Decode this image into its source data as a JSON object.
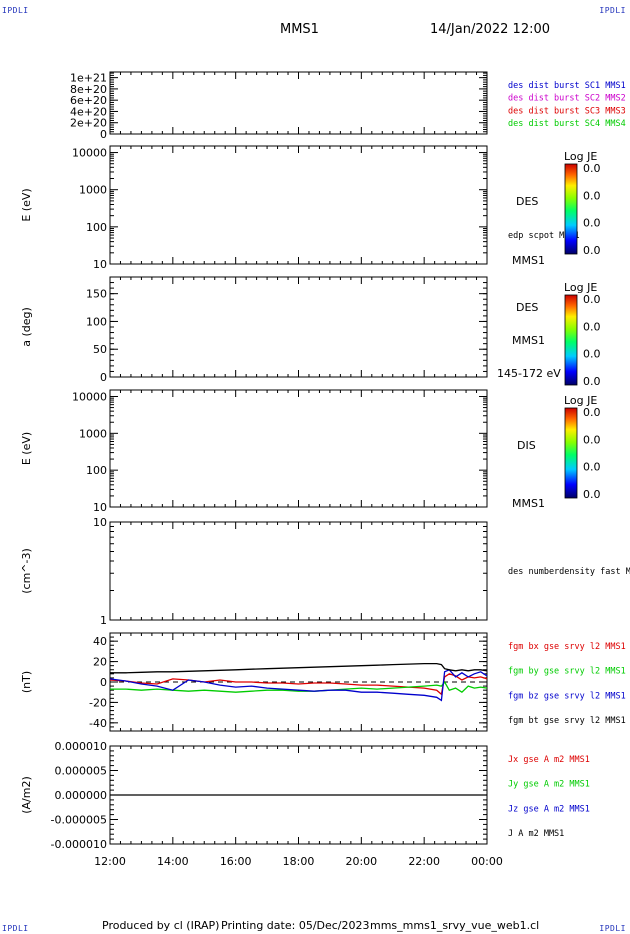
{
  "corner_tags": {
    "top_left": "IPDLI",
    "top_right": "IPDLI",
    "bottom_left": "IPDLI",
    "bottom_right": "IPDLI"
  },
  "header": {
    "spacecraft": "MMS1",
    "datetime": "14/Jan/2022 12:00"
  },
  "footer": {
    "produced": "Produced by cl (IRAP)",
    "printing": "Printing date: 05/Dec/2023",
    "file": "mms_mms1_srvy_vue_web1.cl"
  },
  "colors": {
    "frame": "#000000",
    "red": "#dd0000",
    "green": "#00cc00",
    "blue": "#0000cc",
    "magenta": "#cc00cc",
    "black": "#000000"
  },
  "chart_data": [
    {
      "type": "line",
      "panel": "dist-burst",
      "ylabel": "",
      "ylim": [
        0,
        1.1e+21
      ],
      "yticks": [
        "1e+21",
        "8e+20",
        "6e+20",
        "4e+20",
        "2e+20",
        "0"
      ],
      "ytick_values": [
        1e+21,
        8e+20,
        6e+20,
        4e+20,
        2e+20,
        0
      ],
      "legend": [
        "des dist burst SC1 MMS1",
        "des dist burst SC2 MMS2",
        "des dist burst SC3 MMS3",
        "des dist burst SC4 MMS4"
      ],
      "legend_colors": [
        "#0000cc",
        "#cc00cc",
        "#dd0000",
        "#00cc00"
      ],
      "reference_line": 0
    },
    {
      "type": "heatmap",
      "panel": "des-energy",
      "ylabel": "E (eV)",
      "yscale": "log",
      "ylim": [
        10,
        15000
      ],
      "yticks": [
        "10000",
        "1000",
        "100",
        "10"
      ],
      "ytick_values": [
        10000,
        1000,
        100,
        10
      ],
      "side_labels": [
        "DES",
        "edp scpot MMS1",
        "MMS1"
      ],
      "colorbar": {
        "title": "Log JE",
        "ticks": [
          "0.0",
          "0.0",
          "0.0",
          "0.0"
        ]
      }
    },
    {
      "type": "heatmap",
      "panel": "des-pitch",
      "ylabel": "a (deg)",
      "ylim": [
        0,
        180
      ],
      "yticks": [
        "150",
        "100",
        "50",
        "0"
      ],
      "ytick_values": [
        150,
        100,
        50,
        0
      ],
      "side_labels": [
        "DES",
        "MMS1",
        "145-172 eV"
      ],
      "colorbar": {
        "title": "Log JE",
        "ticks": [
          "0.0",
          "0.0",
          "0.0",
          "0.0"
        ]
      }
    },
    {
      "type": "heatmap",
      "panel": "dis-energy",
      "ylabel": "E (eV)",
      "yscale": "log",
      "ylim": [
        10,
        15000
      ],
      "yticks": [
        "10000",
        "1000",
        "100",
        "10"
      ],
      "ytick_values": [
        10000,
        1000,
        100,
        10
      ],
      "side_labels": [
        "DIS",
        "MMS1"
      ],
      "colorbar": {
        "title": "Log JE",
        "ticks": [
          "0.0",
          "0.0",
          "0.0",
          "0.0"
        ]
      }
    },
    {
      "type": "line",
      "panel": "density",
      "ylabel": "(cm^-3)",
      "yscale": "log",
      "ylim": [
        1,
        10
      ],
      "yticks": [
        "10",
        "1"
      ],
      "ytick_values": [
        10,
        1
      ],
      "legend": [
        "des numberdensity fast M"
      ],
      "legend_colors": [
        "#000000"
      ]
    },
    {
      "type": "line",
      "panel": "fgm",
      "ylabel": "(nT)",
      "ylim": [
        -48,
        48
      ],
      "yticks": [
        "40",
        "20",
        "0",
        "-20",
        "-40"
      ],
      "ytick_values": [
        40,
        20,
        0,
        -20,
        -40
      ],
      "reference_line": 0,
      "legend": [
        "fgm bx gse srvy l2 MMS1",
        "fgm by gse srvy l2 MMS1",
        "fgm bz gse srvy l2 MMS1",
        "fgm bt gse srvy l2 MMS1"
      ],
      "legend_colors": [
        "#dd0000",
        "#00cc00",
        "#0000cc",
        "#000000"
      ],
      "x_hours": [
        0,
        0.5,
        1,
        1.5,
        2,
        2.5,
        3,
        3.5,
        4,
        4.5,
        5,
        5.5,
        6,
        6.5,
        7,
        7.5,
        8,
        8.5,
        9,
        9.5,
        10,
        10.4,
        10.55,
        10.65,
        10.8,
        11,
        11.2,
        11.4,
        11.6,
        11.8,
        12
      ],
      "series": [
        {
          "name": "fgm bx gse srvy l2 MMS1",
          "values": [
            2,
            1,
            -1,
            -2,
            3,
            2,
            0,
            2,
            0,
            0,
            -1,
            -1,
            -2,
            -1,
            -1,
            -2,
            -3,
            -3,
            -4,
            -5,
            -6,
            -8,
            -12,
            5,
            8,
            6,
            2,
            5,
            4,
            5,
            3
          ]
        },
        {
          "name": "fgm by gse srvy l2 MMS1",
          "values": [
            -7,
            -7,
            -8,
            -7,
            -8,
            -9,
            -8,
            -9,
            -10,
            -9,
            -8,
            -8,
            -9,
            -9,
            -8,
            -7,
            -6,
            -7,
            -6,
            -5,
            -4,
            -3,
            -4,
            0,
            -8,
            -6,
            -10,
            -4,
            -6,
            -5,
            -6
          ]
        },
        {
          "name": "fgm bz gse srvy l2 MMS1",
          "values": [
            3,
            1,
            -2,
            -4,
            -8,
            2,
            0,
            -3,
            -5,
            -4,
            -6,
            -7,
            -8,
            -9,
            -8,
            -8,
            -10,
            -10,
            -11,
            -12,
            -13,
            -15,
            -18,
            10,
            12,
            5,
            9,
            5,
            8,
            10,
            6
          ]
        },
        {
          "name": "fgm bt gse srvy l2 MMS1",
          "values": [
            9,
            9,
            9.5,
            10,
            10,
            10.5,
            11,
            11.5,
            12,
            12.5,
            13,
            13.5,
            14,
            14.5,
            15,
            15.5,
            16,
            16.5,
            17,
            17.5,
            18,
            18,
            17,
            13,
            12,
            11,
            12,
            11,
            12,
            12,
            11
          ]
        }
      ]
    },
    {
      "type": "line",
      "panel": "current",
      "ylabel": "(A/m2)",
      "ylim": [
        -1e-05,
        1e-05
      ],
      "yticks": [
        "0.000010",
        "0.000005",
        "0.000000",
        "-0.000005",
        "-0.000010"
      ],
      "ytick_values": [
        1e-05,
        5e-06,
        0,
        -5e-06,
        -1e-05
      ],
      "legend": [
        "Jx gse A m2 MMS1",
        "Jy gse A m2 MMS1",
        "Jz gse A m2 MMS1",
        "J A m2 MMS1"
      ],
      "legend_colors": [
        "#dd0000",
        "#00cc00",
        "#0000cc",
        "#000000"
      ],
      "series": [
        {
          "name": "J A m2 MMS1",
          "values": [
            0,
            0,
            0
          ]
        }
      ],
      "x_hours": [
        0,
        6,
        12
      ]
    }
  ],
  "x_axis": {
    "tick_labels": [
      "12:00",
      "14:00",
      "16:00",
      "18:00",
      "20:00",
      "22:00",
      "00:00"
    ],
    "range_hours": [
      0,
      12
    ]
  }
}
